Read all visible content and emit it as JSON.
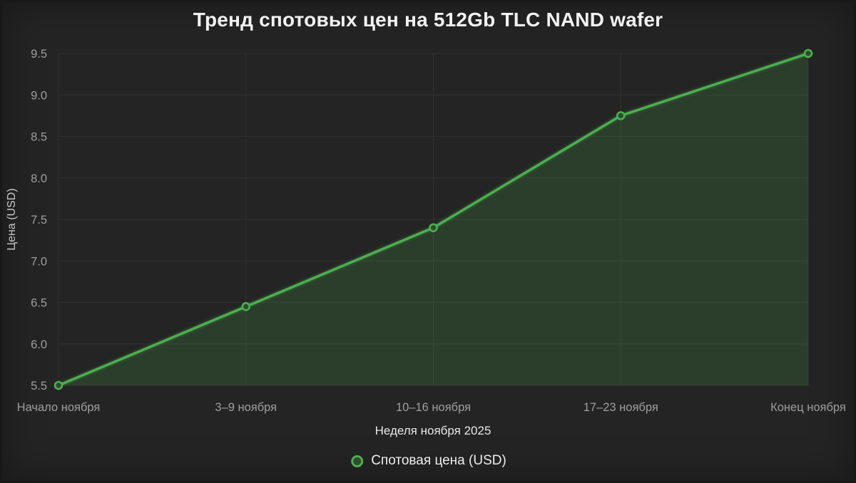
{
  "chart_data": {
    "type": "area",
    "title": "Тренд спотовых цен на 512Gb TLC NAND wafer",
    "xlabel": "Неделя ноября 2025",
    "ylabel": "Цена (USD)",
    "categories": [
      "Начало ноября",
      "3–9 ноября",
      "10–16 ноября",
      "17–23 ноября",
      "Конец ноября"
    ],
    "series": [
      {
        "name": "Спотовая цена (USD)",
        "values": [
          5.5,
          6.45,
          7.4,
          8.75,
          9.5
        ]
      }
    ],
    "ylim": [
      5.5,
      9.5
    ],
    "yticks": [
      5.5,
      6.0,
      6.5,
      7.0,
      7.5,
      8.0,
      8.5,
      9.0,
      9.5
    ],
    "grid": true,
    "legend_position": "bottom",
    "legend_marker_icon": "circle-marker-icon",
    "colors": {
      "line": "#4caf50",
      "area_fill": "rgba(76,175,80,0.18)",
      "marker_fill": "#2d4d2b",
      "background": "#242424",
      "grid": "#2f2f2f",
      "tick_text": "#9f9f9f",
      "axis_title_text": "#e8e8e8",
      "title_text": "#f2f2f2",
      "legend_text": "#ededed"
    }
  }
}
